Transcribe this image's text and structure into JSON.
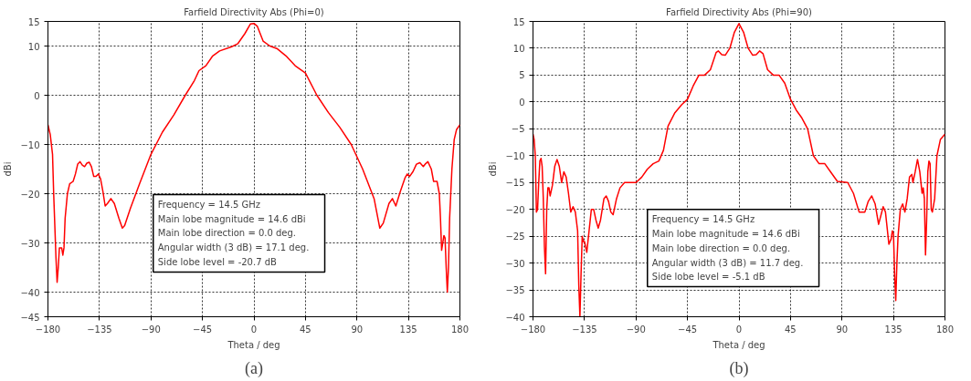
{
  "chart_data": [
    {
      "type": "line",
      "title": "Farfield Directivity Abs (Phi=0)",
      "xlabel": "Theta / deg",
      "ylabel": "dBi",
      "xlim": [
        -180,
        180
      ],
      "ylim": [
        -45,
        15
      ],
      "xticks": [
        -180,
        -135,
        -90,
        -45,
        0,
        45,
        90,
        135,
        180
      ],
      "yticks": [
        -45,
        -40,
        -30,
        -20,
        -10,
        0,
        10,
        15
      ],
      "grid": true,
      "series": [
        {
          "color": "#ff0000",
          "x": [
            -180,
            -178,
            -176,
            -175,
            -173,
            -172,
            -171,
            -170,
            -168,
            -167,
            -166,
            -165,
            -163,
            -161,
            -158,
            -156,
            -154,
            -152,
            -150,
            -148,
            -146,
            -144,
            -142,
            -140,
            -138,
            -136,
            -134,
            -132,
            -130,
            -128,
            -125,
            -122,
            -118,
            -115,
            -113,
            -108,
            -100,
            -90,
            -80,
            -70,
            -60,
            -52,
            -48,
            -42,
            -36,
            -30,
            -20,
            -14,
            -8,
            -3,
            0,
            3,
            8,
            14,
            20,
            28,
            36,
            45,
            55,
            65,
            75,
            85,
            95,
            105,
            110,
            113,
            118,
            121,
            124,
            128,
            132,
            134,
            136,
            139,
            142,
            145,
            148,
            150,
            152,
            155,
            157,
            160,
            162,
            163,
            164,
            165,
            166,
            167,
            168,
            169,
            170,
            171,
            173,
            175,
            177,
            180
          ],
          "values": [
            -6,
            -8,
            -12,
            -20,
            -33,
            -38,
            -35,
            -31,
            -31,
            -32.5,
            -31,
            -25,
            -20,
            -18,
            -17.5,
            -16,
            -14,
            -13.5,
            -14.2,
            -14.5,
            -13.8,
            -13.6,
            -14.5,
            -16.5,
            -16.5,
            -16,
            -17,
            -19.5,
            -22.5,
            -22,
            -21,
            -22,
            -25,
            -27,
            -26.5,
            -23,
            -18,
            -12,
            -7.5,
            -4,
            0,
            3,
            5,
            6,
            8,
            9,
            9.8,
            10.5,
            12.5,
            14.5,
            14.6,
            14,
            11,
            10,
            9.5,
            8,
            6,
            4.5,
            0,
            -3.5,
            -6.5,
            -10,
            -15,
            -21,
            -27,
            -26,
            -22,
            -21,
            -22.5,
            -19.5,
            -16.8,
            -16,
            -16.5,
            -15.5,
            -14,
            -13.7,
            -14.5,
            -13.9,
            -13.5,
            -15,
            -17.5,
            -17.5,
            -20,
            -25,
            -31.5,
            -30,
            -28.5,
            -29,
            -35,
            -40,
            -35,
            -25,
            -15,
            -9,
            -7,
            -6
          ]
        }
      ],
      "annotations": [
        "Frequency = 14.5 GHz",
        "Main lobe magnitude =      14.6 dBi",
        "Main lobe direction =    0.0 deg.",
        "Angular width (3 dB) =   17.1 deg.",
        "Side lobe level =  -20.7 dB",
        "(a)"
      ]
    },
    {
      "type": "line",
      "title": "Farfield Directivity Abs (Phi=90)",
      "xlabel": "Theta / deg",
      "ylabel": "dBi",
      "xlim": [
        -180,
        180
      ],
      "ylim": [
        -40,
        15
      ],
      "xticks": [
        -180,
        -135,
        -90,
        -45,
        0,
        45,
        90,
        135,
        180
      ],
      "yticks": [
        -40,
        -35,
        -30,
        -25,
        -20,
        -15,
        -10,
        -5,
        0,
        5,
        10,
        15
      ],
      "grid": true,
      "series": [
        {
          "color": "#ff0000",
          "x": [
            -180,
            -179,
            -178,
            -177,
            -176,
            -175,
            -174,
            -173,
            -172,
            -171,
            -170,
            -169,
            -168,
            -167,
            -166,
            -165,
            -163,
            -161,
            -159,
            -157,
            -155,
            -153,
            -151,
            -149,
            -147,
            -145,
            -143,
            -141,
            -140,
            -139,
            -138,
            -137,
            -136,
            -135,
            -133,
            -131,
            -129,
            -127,
            -125,
            -123,
            -121,
            -118,
            -116,
            -114,
            -112,
            -110,
            -107,
            -104,
            -100,
            -95,
            -90,
            -85,
            -80,
            -75,
            -70,
            -66,
            -62,
            -56,
            -50,
            -45,
            -40,
            -35,
            -30,
            -25,
            -20,
            -18,
            -15,
            -12,
            -8,
            -4,
            0,
            4,
            8,
            12,
            15,
            18,
            21,
            25,
            30,
            35,
            40,
            45,
            50,
            55,
            60,
            65,
            70,
            75,
            80,
            86,
            95,
            100,
            105,
            110,
            113,
            116,
            119,
            122,
            126,
            128,
            131,
            133,
            134,
            135,
            136,
            137,
            138,
            139,
            141,
            143,
            145,
            147,
            149,
            151,
            152,
            154,
            156,
            158,
            160,
            161,
            162,
            163,
            164,
            165,
            166,
            167,
            168,
            169,
            171,
            173,
            176,
            180
          ],
          "values": [
            -6,
            -7,
            -10,
            -20.5,
            -20,
            -15,
            -11,
            -10.5,
            -12,
            -18,
            -27,
            -32,
            -20,
            -16,
            -16,
            -17.5,
            -15.5,
            -12,
            -10.7,
            -12,
            -15,
            -13,
            -14,
            -17,
            -20.5,
            -19.5,
            -20.5,
            -24,
            -34,
            -40,
            -32,
            -25,
            -26,
            -26,
            -28,
            -24,
            -20,
            -20,
            -22,
            -23.5,
            -22,
            -18,
            -17.5,
            -18.5,
            -20.5,
            -21,
            -18,
            -16,
            -15,
            -15,
            -15,
            -14,
            -12.5,
            -11.5,
            -11,
            -9,
            -4.5,
            -2,
            -0.5,
            0.5,
            3,
            5,
            5,
            6,
            9.2,
            9.5,
            8.8,
            8.7,
            10,
            13,
            14.6,
            13,
            10,
            8.7,
            8.8,
            9.5,
            9,
            6,
            5,
            5,
            3.5,
            0.5,
            -1.5,
            -3,
            -5,
            -10,
            -11.5,
            -11.5,
            -13,
            -14.8,
            -15,
            -17,
            -20.5,
            -20.5,
            -18.5,
            -17.5,
            -19,
            -22.8,
            -19.5,
            -20.5,
            -26.5,
            -25.5,
            -24,
            -24.5,
            -32,
            -37,
            -30,
            -25,
            -20,
            -19,
            -20.5,
            -18,
            -14,
            -13.5,
            -15,
            -13,
            -10.7,
            -13,
            -17,
            -16,
            -18,
            -28.5,
            -22,
            -13,
            -11,
            -11.5,
            -20,
            -20.5,
            -18,
            -10,
            -7,
            -6
          ]
        }
      ],
      "annotations": [
        "Frequency = 14.5 GHz",
        "Main lobe magnitude =      14.6 dBi",
        "Main lobe direction =    0.0 deg.",
        "Angular width (3 dB) =   11.7 deg.",
        "Side lobe level =   -5.1 dB",
        "(b)"
      ]
    }
  ]
}
